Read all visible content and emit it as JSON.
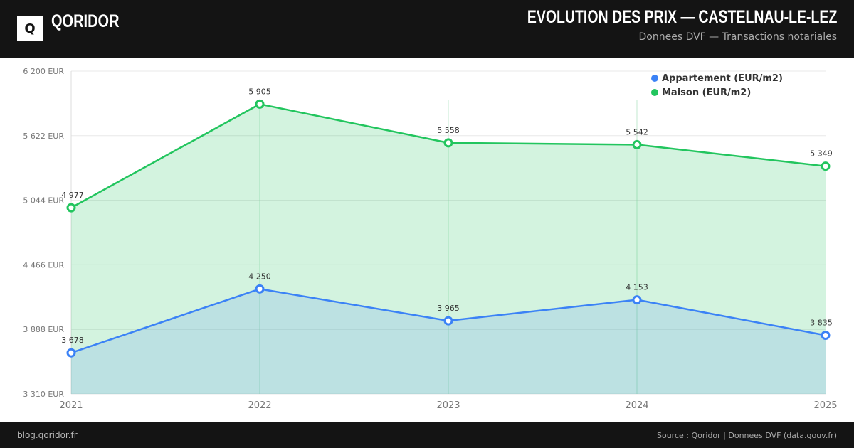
{
  "header": {
    "logo_letter": "Q",
    "brand": "QORIDOR",
    "title": "EVOLUTION DES PRIX — CASTELNAU-LE-LEZ",
    "subtitle": "Donnees DVF — Transactions notariales"
  },
  "footer": {
    "left": "blog.qoridor.fr",
    "right": "Source : Qoridor | Donnees DVF (data.gouv.fr)"
  },
  "chart_data": {
    "type": "line",
    "title": "EVOLUTION DES PRIX — CASTELNAU-LE-LEZ",
    "x": [
      "2021",
      "2022",
      "2023",
      "2024",
      "2025"
    ],
    "ylim": [
      3310,
      6200
    ],
    "yticks": [
      6200,
      5622,
      5044,
      4466,
      3888,
      3310
    ],
    "ytick_labels": [
      "6 200 EUR",
      "5 622 EUR",
      "5 044 EUR",
      "4 466 EUR",
      "3 888 EUR",
      "3 310 EUR"
    ],
    "legend_position": "top-right",
    "series": [
      {
        "name": "Appartement (EUR/m2)",
        "color": "#3b82f6",
        "values": [
          3678,
          4250,
          3965,
          4153,
          3835
        ],
        "labels": [
          "3 678",
          "4 250",
          "3 965",
          "4 153",
          "3 835"
        ]
      },
      {
        "name": "Maison (EUR/m2)",
        "color": "#22c55e",
        "values": [
          4977,
          5905,
          5558,
          5542,
          5349
        ],
        "labels": [
          "4 977",
          "5 905",
          "5 558",
          "5 542",
          "5 349"
        ]
      }
    ]
  }
}
